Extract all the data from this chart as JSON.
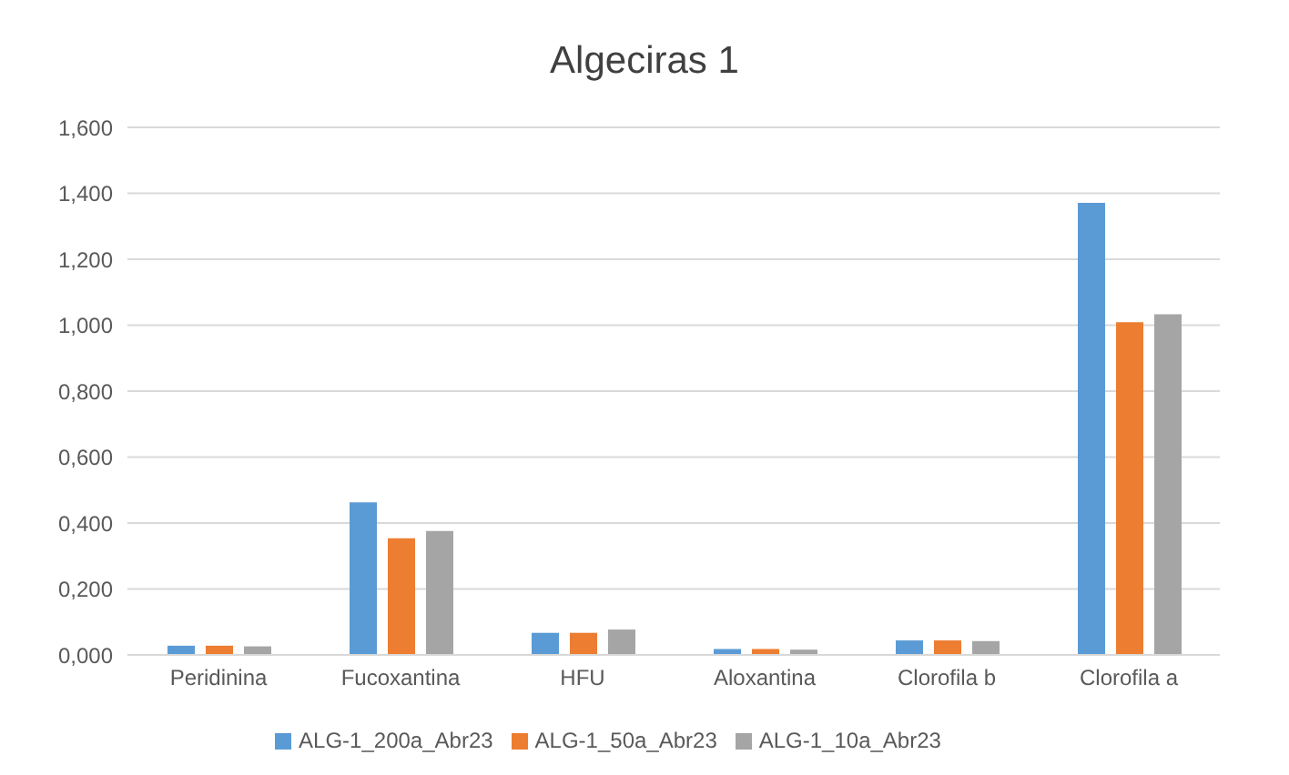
{
  "chart_data": {
    "type": "bar",
    "title": "Algeciras 1",
    "categories": [
      "Peridinina",
      "Fucoxantina",
      "HFU",
      "Aloxantina",
      "Clorofila b",
      "Clorofila a"
    ],
    "series": [
      {
        "name": "ALG-1_200a_Abr23",
        "color": "#5b9bd5",
        "values": [
          0.028,
          0.463,
          0.067,
          0.018,
          0.044,
          1.371
        ]
      },
      {
        "name": "ALG-1_50a_Abr23",
        "color": "#ed7d31",
        "values": [
          0.028,
          0.354,
          0.067,
          0.018,
          0.044,
          1.009
        ]
      },
      {
        "name": "ALG-1_10a_Abr23",
        "color": "#a5a5a5",
        "values": [
          0.026,
          0.376,
          0.077,
          0.016,
          0.042,
          1.033
        ]
      }
    ],
    "ylim": [
      0,
      1.6
    ],
    "yticks": [
      {
        "value": 0,
        "label": "0,000"
      },
      {
        "value": 0.2,
        "label": "0,200"
      },
      {
        "value": 0.4,
        "label": "0,400"
      },
      {
        "value": 0.6,
        "label": "0,600"
      },
      {
        "value": 0.8,
        "label": "0,800"
      },
      {
        "value": 1,
        "label": "1,000"
      },
      {
        "value": 1.2,
        "label": "1,200"
      },
      {
        "value": 1.4,
        "label": "1,400"
      },
      {
        "value": 1.6,
        "label": "1,600"
      }
    ],
    "grid": "y",
    "legend": "bottom"
  }
}
